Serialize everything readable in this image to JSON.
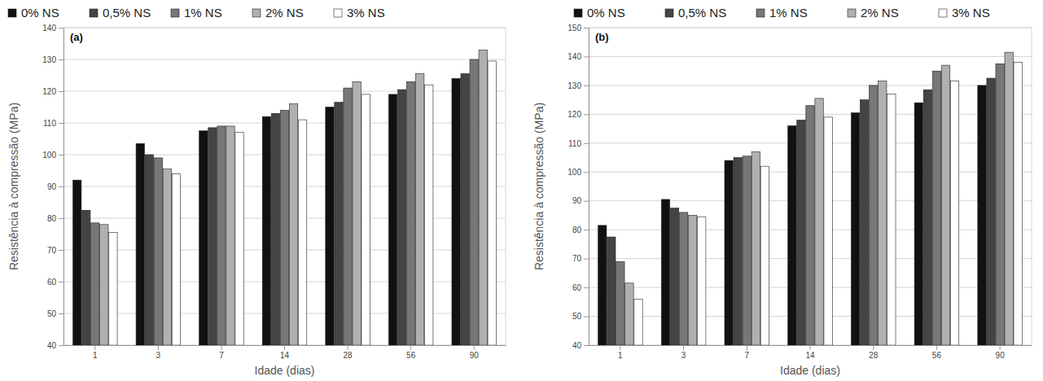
{
  "chart_data": [
    {
      "type": "bar",
      "title": "(a)",
      "x_label": "Idade (dias)",
      "y_label": "Resistência à compressão (MPa)",
      "categories": [
        "1",
        "3",
        "7",
        "14",
        "28",
        "56",
        "90"
      ],
      "series": [
        {
          "name": "0% NS",
          "color": "#111111",
          "values": [
            92,
            103.5,
            107.5,
            112,
            115,
            119,
            124
          ]
        },
        {
          "name": "0,5% NS",
          "color": "#444444",
          "values": [
            82.5,
            100,
            108.5,
            113,
            116.5,
            120.5,
            125.5
          ]
        },
        {
          "name": "1% NS",
          "color": "#777777",
          "values": [
            78.5,
            99,
            109,
            114,
            121,
            123,
            130
          ]
        },
        {
          "name": "2% NS",
          "color": "#b0b0b0",
          "values": [
            78,
            95.5,
            109,
            116,
            123,
            125.5,
            133
          ]
        },
        {
          "name": "3% NS",
          "color": "#ffffff",
          "values": [
            75.5,
            94,
            107,
            111,
            119,
            122,
            129.5
          ]
        }
      ],
      "ylim": [
        40,
        140
      ],
      "yticks": [
        40,
        50,
        60,
        70,
        80,
        90,
        100,
        110,
        120,
        130,
        140
      ],
      "grid": true,
      "legend": "top"
    },
    {
      "type": "bar",
      "title": "(b)",
      "x_label": "Idade (dias)",
      "y_label": "Resistência à compressão (MPa)",
      "categories": [
        "1",
        "3",
        "7",
        "14",
        "28",
        "56",
        "90"
      ],
      "series": [
        {
          "name": "0% NS",
          "color": "#111111",
          "values": [
            81.5,
            90.5,
            104,
            116,
            120.5,
            124,
            130
          ]
        },
        {
          "name": "0,5% NS",
          "color": "#444444",
          "values": [
            77.5,
            87.5,
            105,
            118,
            125,
            128.5,
            132.5
          ]
        },
        {
          "name": "1% NS",
          "color": "#777777",
          "values": [
            69,
            86,
            105.5,
            123,
            130,
            135,
            137.5
          ]
        },
        {
          "name": "2% NS",
          "color": "#b0b0b0",
          "values": [
            61.5,
            85,
            107,
            125.5,
            131.5,
            137,
            141.5
          ]
        },
        {
          "name": "3% NS",
          "color": "#ffffff",
          "values": [
            56,
            84.5,
            102,
            119,
            127,
            131.5,
            138
          ]
        }
      ],
      "ylim": [
        40,
        150
      ],
      "yticks": [
        40,
        50,
        60,
        70,
        80,
        90,
        100,
        110,
        120,
        130,
        140,
        150
      ],
      "grid": true,
      "legend": "top"
    }
  ]
}
